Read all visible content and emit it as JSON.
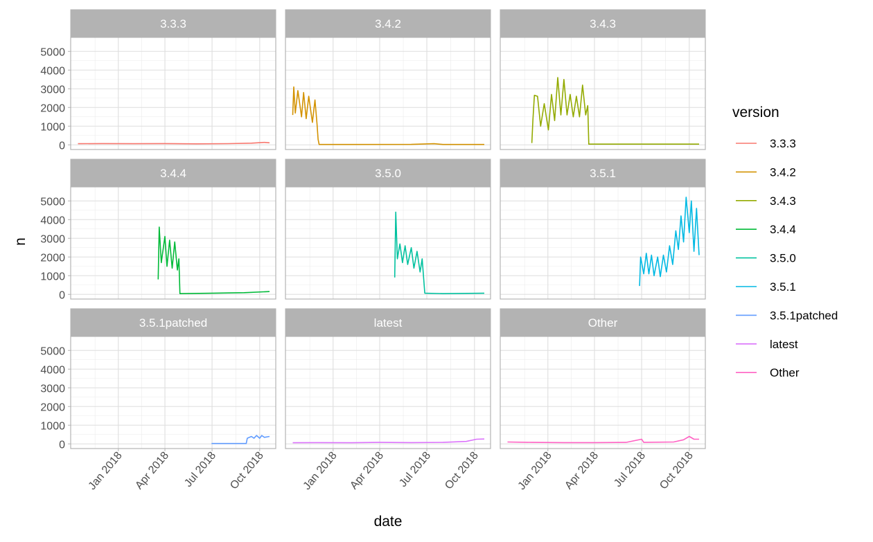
{
  "chart_data": {
    "type": "line",
    "xlabel": "date",
    "ylabel": "n",
    "legend_title": "version",
    "legend_position": "right",
    "grid": true,
    "facet_rows": 3,
    "facet_cols": 3,
    "x_range": [
      "2017-10-01",
      "2018-11-01"
    ],
    "y_range": [
      -250,
      5750
    ],
    "x_ticks": [
      {
        "date": "2018-01-01",
        "label": "Jan 2018"
      },
      {
        "date": "2018-04-01",
        "label": "Apr 2018"
      },
      {
        "date": "2018-07-01",
        "label": "Jul 2018"
      },
      {
        "date": "2018-10-01",
        "label": "Oct 2018"
      }
    ],
    "y_ticks": [
      0,
      1000,
      2000,
      3000,
      4000,
      5000
    ],
    "y_tick_labels": [
      "0",
      "1000",
      "2000",
      "3000",
      "4000",
      "5000"
    ],
    "series": [
      {
        "name": "3.3.3",
        "color": "#F8766D",
        "points": [
          [
            "2017-10-15",
            60
          ],
          [
            "2017-12-01",
            70
          ],
          [
            "2018-02-01",
            60
          ],
          [
            "2018-04-01",
            70
          ],
          [
            "2018-06-01",
            55
          ],
          [
            "2018-08-01",
            65
          ],
          [
            "2018-09-15",
            90
          ],
          [
            "2018-10-10",
            130
          ],
          [
            "2018-10-20",
            110
          ]
        ]
      },
      {
        "name": "3.4.2",
        "color": "#D39200",
        "points": [
          [
            "2017-10-15",
            1600
          ],
          [
            "2017-10-17",
            3100
          ],
          [
            "2017-10-20",
            1700
          ],
          [
            "2017-10-25",
            2900
          ],
          [
            "2017-11-01",
            1500
          ],
          [
            "2017-11-05",
            2800
          ],
          [
            "2017-11-10",
            1400
          ],
          [
            "2017-11-15",
            2600
          ],
          [
            "2017-11-22",
            1200
          ],
          [
            "2017-11-27",
            2400
          ],
          [
            "2017-12-01",
            1100
          ],
          [
            "2017-12-03",
            300
          ],
          [
            "2017-12-05",
            20
          ],
          [
            "2018-02-01",
            20
          ],
          [
            "2018-06-01",
            25
          ],
          [
            "2018-07-15",
            60
          ],
          [
            "2018-08-01",
            20
          ],
          [
            "2018-10-20",
            20
          ]
        ]
      },
      {
        "name": "3.4.3",
        "color": "#93AA00",
        "points": [
          [
            "2017-12-01",
            100
          ],
          [
            "2017-12-03",
            1300
          ],
          [
            "2017-12-06",
            2650
          ],
          [
            "2017-12-12",
            2600
          ],
          [
            "2017-12-18",
            1000
          ],
          [
            "2017-12-25",
            2200
          ],
          [
            "2018-01-02",
            800
          ],
          [
            "2018-01-08",
            2700
          ],
          [
            "2018-01-14",
            1300
          ],
          [
            "2018-01-20",
            3600
          ],
          [
            "2018-01-26",
            1600
          ],
          [
            "2018-02-01",
            3500
          ],
          [
            "2018-02-07",
            1600
          ],
          [
            "2018-02-13",
            2700
          ],
          [
            "2018-02-19",
            1500
          ],
          [
            "2018-02-25",
            2600
          ],
          [
            "2018-03-03",
            1500
          ],
          [
            "2018-03-09",
            3200
          ],
          [
            "2018-03-15",
            1600
          ],
          [
            "2018-03-19",
            2100
          ],
          [
            "2018-03-21",
            40
          ],
          [
            "2018-06-01",
            40
          ],
          [
            "2018-10-01",
            40
          ],
          [
            "2018-10-20",
            40
          ]
        ]
      },
      {
        "name": "3.4.4",
        "color": "#00BA38",
        "points": [
          [
            "2018-03-19",
            800
          ],
          [
            "2018-03-21",
            3600
          ],
          [
            "2018-03-25",
            1700
          ],
          [
            "2018-04-01",
            3100
          ],
          [
            "2018-04-05",
            1500
          ],
          [
            "2018-04-10",
            2900
          ],
          [
            "2018-04-15",
            1400
          ],
          [
            "2018-04-20",
            2800
          ],
          [
            "2018-04-25",
            1300
          ],
          [
            "2018-04-28",
            1900
          ],
          [
            "2018-04-30",
            40
          ],
          [
            "2018-07-01",
            60
          ],
          [
            "2018-09-01",
            90
          ],
          [
            "2018-10-20",
            150
          ]
        ]
      },
      {
        "name": "3.5.0",
        "color": "#00C19F",
        "points": [
          [
            "2018-04-30",
            900
          ],
          [
            "2018-05-02",
            4400
          ],
          [
            "2018-05-05",
            1900
          ],
          [
            "2018-05-10",
            2700
          ],
          [
            "2018-05-15",
            1700
          ],
          [
            "2018-05-20",
            2600
          ],
          [
            "2018-05-25",
            1600
          ],
          [
            "2018-06-01",
            2500
          ],
          [
            "2018-06-06",
            1400
          ],
          [
            "2018-06-12",
            2300
          ],
          [
            "2018-06-18",
            1200
          ],
          [
            "2018-06-22",
            1900
          ],
          [
            "2018-06-27",
            60
          ],
          [
            "2018-08-01",
            40
          ],
          [
            "2018-10-20",
            60
          ]
        ]
      },
      {
        "name": "3.5.1",
        "color": "#00B9E3",
        "points": [
          [
            "2018-06-27",
            450
          ],
          [
            "2018-06-29",
            2000
          ],
          [
            "2018-07-05",
            1100
          ],
          [
            "2018-07-10",
            2200
          ],
          [
            "2018-07-15",
            1100
          ],
          [
            "2018-07-20",
            2100
          ],
          [
            "2018-07-25",
            1000
          ],
          [
            "2018-08-01",
            2000
          ],
          [
            "2018-08-06",
            950
          ],
          [
            "2018-08-12",
            2100
          ],
          [
            "2018-08-18",
            1200
          ],
          [
            "2018-08-24",
            2600
          ],
          [
            "2018-08-30",
            1600
          ],
          [
            "2018-09-05",
            3400
          ],
          [
            "2018-09-10",
            2400
          ],
          [
            "2018-09-15",
            4200
          ],
          [
            "2018-09-20",
            2800
          ],
          [
            "2018-09-25",
            5200
          ],
          [
            "2018-10-01",
            3300
          ],
          [
            "2018-10-05",
            5000
          ],
          [
            "2018-10-10",
            2300
          ],
          [
            "2018-10-15",
            4600
          ],
          [
            "2018-10-20",
            2100
          ]
        ]
      },
      {
        "name": "3.5.1patched",
        "color": "#619CFF",
        "points": [
          [
            "2018-06-30",
            20
          ],
          [
            "2018-09-05",
            20
          ],
          [
            "2018-09-07",
            300
          ],
          [
            "2018-09-15",
            400
          ],
          [
            "2018-09-20",
            300
          ],
          [
            "2018-09-25",
            450
          ],
          [
            "2018-10-01",
            300
          ],
          [
            "2018-10-05",
            450
          ],
          [
            "2018-10-10",
            350
          ],
          [
            "2018-10-20",
            400
          ]
        ]
      },
      {
        "name": "latest",
        "color": "#DB72FB",
        "points": [
          [
            "2017-10-15",
            60
          ],
          [
            "2017-12-01",
            70
          ],
          [
            "2018-02-01",
            60
          ],
          [
            "2018-04-01",
            80
          ],
          [
            "2018-06-01",
            70
          ],
          [
            "2018-08-01",
            80
          ],
          [
            "2018-09-15",
            130
          ],
          [
            "2018-10-05",
            250
          ],
          [
            "2018-10-20",
            260
          ]
        ]
      },
      {
        "name": "Other",
        "color": "#FF61C3",
        "points": [
          [
            "2017-10-15",
            100
          ],
          [
            "2017-12-01",
            80
          ],
          [
            "2018-02-01",
            70
          ],
          [
            "2018-04-01",
            70
          ],
          [
            "2018-06-01",
            80
          ],
          [
            "2018-07-01",
            250
          ],
          [
            "2018-07-05",
            80
          ],
          [
            "2018-09-01",
            100
          ],
          [
            "2018-09-20",
            220
          ],
          [
            "2018-10-01",
            400
          ],
          [
            "2018-10-10",
            250
          ],
          [
            "2018-10-20",
            250
          ]
        ]
      }
    ]
  }
}
